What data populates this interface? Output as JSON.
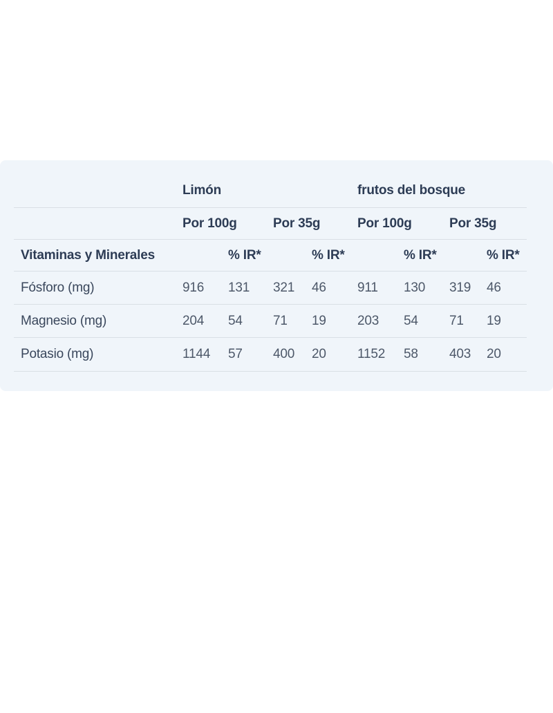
{
  "colors": {
    "card_background": "#f0f5fa",
    "divider": "#d9dfe5",
    "header_text": "#2d3c55",
    "label_text": "#3a475c",
    "value_text": "#4d5869",
    "page_background": "#ffffff"
  },
  "chart_data": {
    "type": "table",
    "title": "",
    "section_header": "Vitaminas y Minerales",
    "ir_label": "% IR*",
    "groups": [
      {
        "name": "Limón",
        "servings": [
          "Por 100g",
          "Por 35g"
        ]
      },
      {
        "name": "frutos del bosque",
        "servings": [
          "Por 100g",
          "Por 35g"
        ]
      }
    ],
    "columns": [
      "Limón Por 100g",
      "Limón Por 100g % IR*",
      "Limón Por 35g",
      "Limón Por 35g % IR*",
      "frutos del bosque Por 100g",
      "frutos del bosque Por 100g % IR*",
      "frutos del bosque Por 35g",
      "frutos del bosque Por 35g % IR*"
    ],
    "rows": [
      {
        "label": "Fósforo (mg)",
        "values": [
          916,
          131,
          321,
          46,
          911,
          130,
          319,
          46
        ]
      },
      {
        "label": "Magnesio (mg)",
        "values": [
          204,
          54,
          71,
          19,
          203,
          54,
          71,
          19
        ]
      },
      {
        "label": "Potasio (mg)",
        "values": [
          1144,
          57,
          400,
          20,
          1152,
          58,
          403,
          20
        ]
      }
    ]
  }
}
